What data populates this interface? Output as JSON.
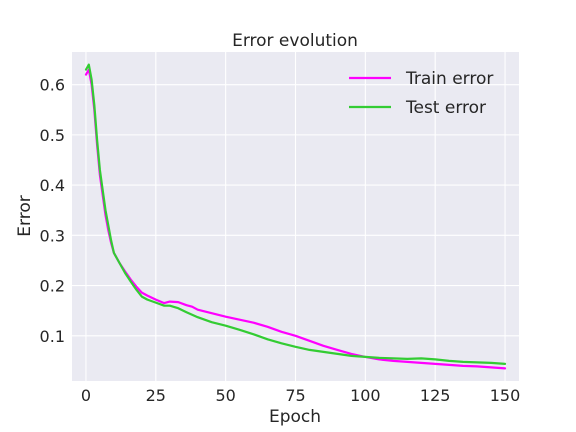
{
  "chart_data": {
    "type": "line",
    "title": "Error evolution",
    "xlabel": "Epoch",
    "ylabel": "Error",
    "xlim": [
      -5,
      155
    ],
    "ylim": [
      0.01,
      0.665
    ],
    "xticks": [
      0,
      25,
      50,
      75,
      100,
      125,
      150
    ],
    "yticks": [
      0.1,
      0.2,
      0.3,
      0.4,
      0.5,
      0.6
    ],
    "grid": true,
    "legend_position": "top-right",
    "x": [
      0,
      1,
      2,
      3,
      4,
      5,
      6,
      7,
      8,
      9,
      10,
      12,
      14,
      16,
      18,
      20,
      22,
      25,
      28,
      30,
      33,
      36,
      38,
      40,
      45,
      50,
      55,
      60,
      65,
      70,
      75,
      80,
      85,
      90,
      95,
      100,
      105,
      110,
      115,
      120,
      125,
      130,
      135,
      140,
      145,
      150
    ],
    "series": [
      {
        "name": "Train error",
        "color": "#ff00ff",
        "values": [
          0.62,
          0.63,
          0.6,
          0.55,
          0.48,
          0.42,
          0.38,
          0.34,
          0.31,
          0.285,
          0.265,
          0.245,
          0.228,
          0.212,
          0.198,
          0.186,
          0.18,
          0.172,
          0.165,
          0.168,
          0.167,
          0.161,
          0.158,
          0.152,
          0.145,
          0.138,
          0.132,
          0.126,
          0.118,
          0.108,
          0.1,
          0.09,
          0.08,
          0.072,
          0.064,
          0.058,
          0.053,
          0.05,
          0.048,
          0.046,
          0.044,
          0.042,
          0.04,
          0.039,
          0.037,
          0.035
        ]
      },
      {
        "name": "Test error",
        "color": "#33cc33",
        "values": [
          0.63,
          0.64,
          0.61,
          0.56,
          0.49,
          0.43,
          0.39,
          0.35,
          0.32,
          0.29,
          0.265,
          0.245,
          0.225,
          0.208,
          0.192,
          0.178,
          0.172,
          0.166,
          0.16,
          0.16,
          0.155,
          0.147,
          0.142,
          0.137,
          0.127,
          0.12,
          0.112,
          0.103,
          0.093,
          0.085,
          0.078,
          0.072,
          0.068,
          0.064,
          0.06,
          0.058,
          0.056,
          0.055,
          0.054,
          0.055,
          0.053,
          0.05,
          0.048,
          0.047,
          0.046,
          0.044
        ]
      }
    ]
  }
}
